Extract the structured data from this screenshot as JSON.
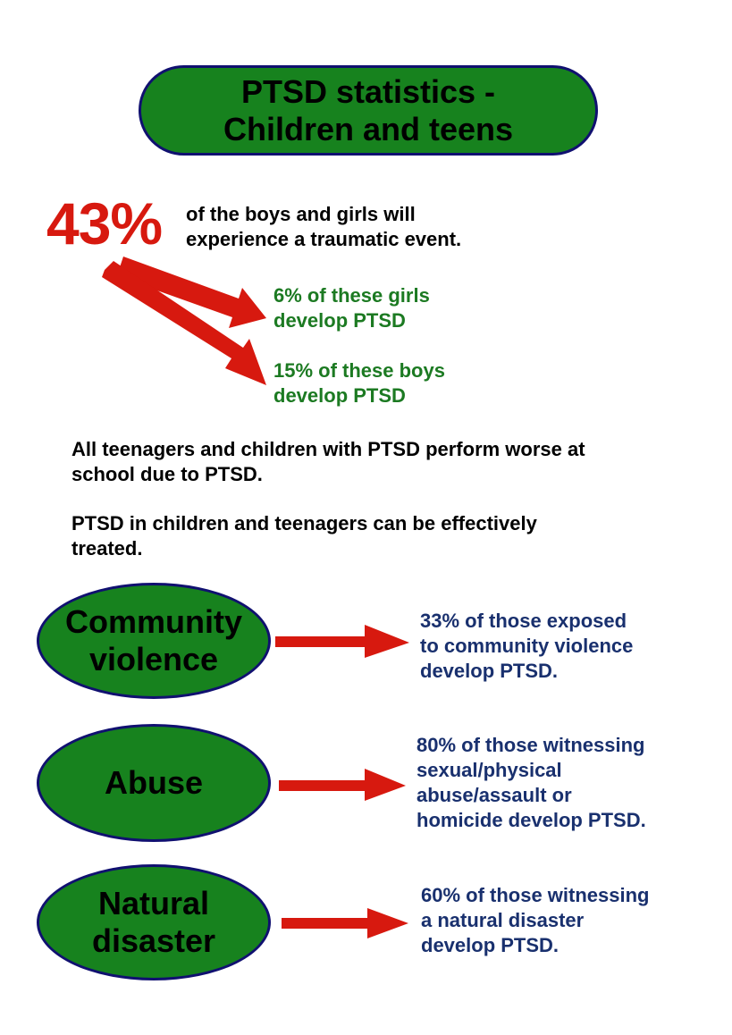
{
  "colors": {
    "pill_fill": "#17821e",
    "pill_stroke": "#101070",
    "red": "#d7190f",
    "green_text": "#1c7a22",
    "blue_text": "#19306e"
  },
  "title": {
    "line1": "PTSD statistics -",
    "line2": "Children and teens"
  },
  "headline": {
    "percent": "43%",
    "line1": "of the boys and girls will",
    "line2": "experience a traumatic event."
  },
  "branches": [
    {
      "line1": "6% of these girls",
      "line2": "develop PTSD"
    },
    {
      "line1": "15% of these boys",
      "line2": "develop PTSD"
    }
  ],
  "statements": [
    {
      "line1": "All teenagers and children with PTSD perform worse at",
      "line2": "school due to PTSD."
    },
    {
      "line1": "PTSD in children and teenagers can be effectively",
      "line2": "treated."
    }
  ],
  "causes": [
    {
      "label_line1": "Community",
      "label_line2": "violence",
      "stat_lines": [
        "33% of those exposed",
        "to community violence",
        "develop PTSD."
      ]
    },
    {
      "label_line1": "Abuse",
      "label_line2": "",
      "stat_lines": [
        "80% of those witnessing",
        "sexual/physical",
        "abuse/assault or",
        "homicide develop PTSD."
      ]
    },
    {
      "label_line1": "Natural",
      "label_line2": "disaster",
      "stat_lines": [
        "60% of those witnessing",
        "a natural disaster",
        "develop PTSD."
      ]
    }
  ]
}
